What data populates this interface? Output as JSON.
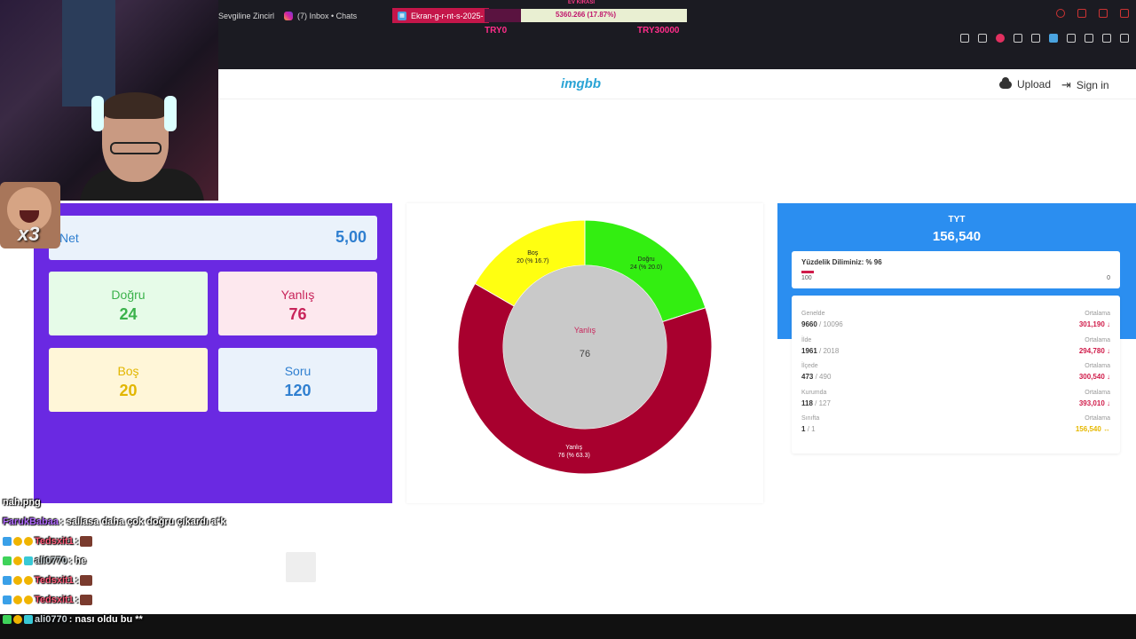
{
  "browser": {
    "tabs": [
      {
        "label": "Sevgiline Zincirl"
      },
      {
        "label": "(7) Inbox • Chats"
      },
      {
        "label": "Ekran-g-r-nt-s-2025-"
      }
    ],
    "donation": {
      "title": "EV KİRASI",
      "value_text": "5360.266 (17.87%)",
      "progress": 0.1787,
      "min": "TRY0",
      "max": "TRY30000"
    }
  },
  "site": {
    "logo": "imgbb",
    "upload_label": "Upload",
    "signin_label": "Sign in"
  },
  "stats": {
    "net_label": "Net",
    "net_value": "5,00",
    "dogru_label": "Doğru",
    "dogru_value": "24",
    "yanlis_label": "Yanlış",
    "yanlis_value": "76",
    "bos_label": "Boş",
    "bos_value": "20",
    "soru_label": "Soru",
    "soru_value": "120"
  },
  "chart_data": {
    "type": "pie",
    "donut": true,
    "slices": [
      {
        "label": "Doğru",
        "value": 24,
        "text": "24 (% 20.0)",
        "color": "#33ee11"
      },
      {
        "label": "Yanlış",
        "value": 76,
        "text": "76 (% 63.3)",
        "color": "#a8002e"
      },
      {
        "label": "Boş",
        "value": 20,
        "text": "20 (% 16.7)",
        "color": "#ffff11"
      }
    ],
    "center_label": "Yanlış",
    "center_value": "76"
  },
  "result": {
    "exam": "TYT",
    "score": "156,540",
    "percentile_title": "Yüzdelik Diliminiz: % 96",
    "percentile": 0.04,
    "scale_left": "100",
    "scale_right": "0",
    "rows": [
      {
        "label": "Genelde",
        "rank": "9660",
        "total": "/ 10096",
        "avg_label": "Ortalama",
        "avg": "301,190 ↓",
        "trend": "down"
      },
      {
        "label": "İlde",
        "rank": "1961",
        "total": "/ 2018",
        "avg_label": "Ortalama",
        "avg": "294,780 ↓",
        "trend": "down"
      },
      {
        "label": "İlçede",
        "rank": "473",
        "total": "/ 490",
        "avg_label": "Ortalama",
        "avg": "300,540 ↓",
        "trend": "down"
      },
      {
        "label": "Kurumda",
        "rank": "118",
        "total": "/ 127",
        "avg_label": "Ortalama",
        "avg": "393,010 ↓",
        "trend": "down"
      },
      {
        "label": "Sınıfta",
        "rank": "1",
        "total": "/ 1",
        "avg_label": "Ortalama",
        "avg": "156,540 ↔",
        "trend": "eq"
      }
    ]
  },
  "chat": {
    "lines": [
      {
        "user": "",
        "text": "nah.png"
      },
      {
        "user": "FarukBabaa",
        "text": ": sallasa daha çok doğru çıkardı a*k"
      },
      {
        "user": "Tedsxit1",
        "text": ":"
      },
      {
        "user": "ali0770",
        "text": ": he"
      },
      {
        "user": "Tedsxit1",
        "text": ":"
      },
      {
        "user": "Tedsxit1",
        "text": ":"
      },
      {
        "user": "ali0770",
        "text": ": nası oldu bu **"
      }
    ]
  },
  "webcam": {
    "emote_text": "x3"
  }
}
